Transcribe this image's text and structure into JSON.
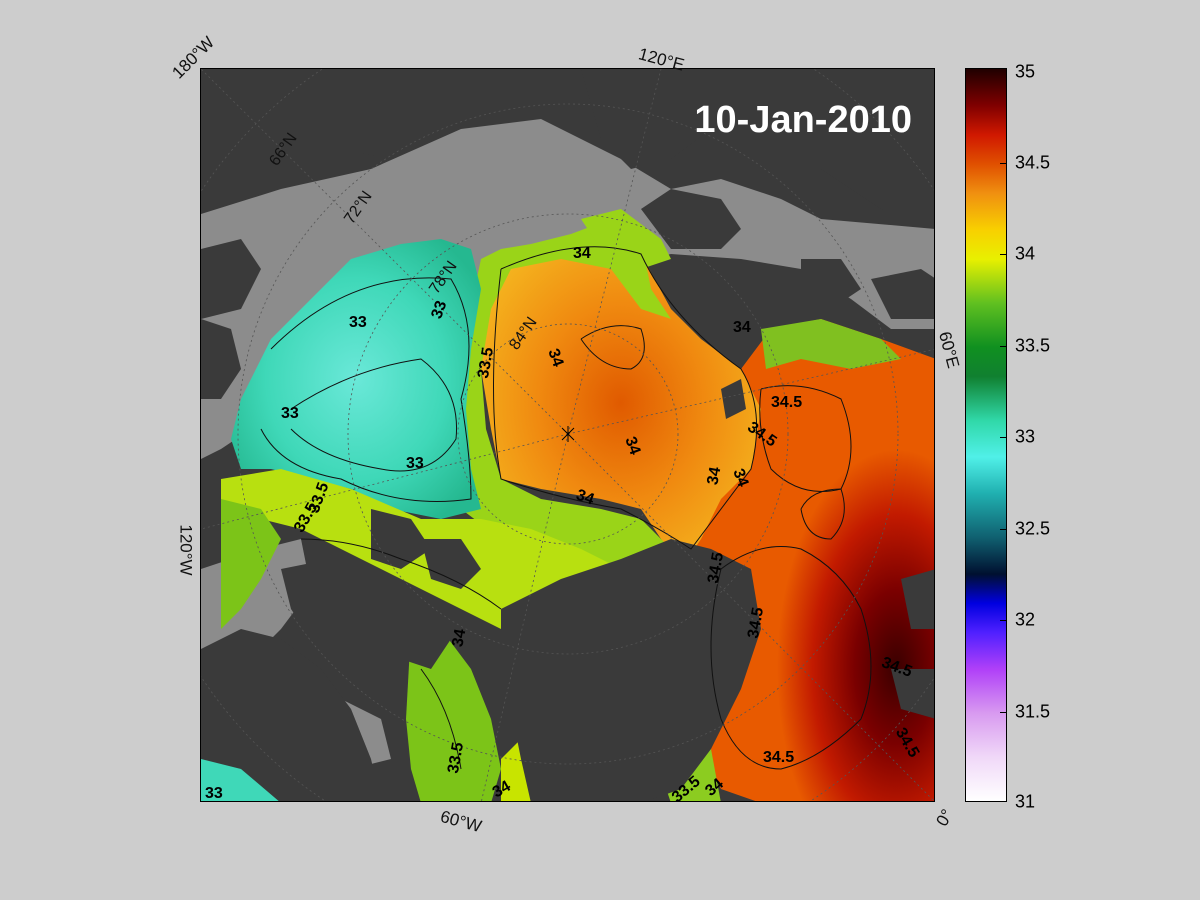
{
  "map": {
    "date": "10-Jan-2010",
    "longitude_labels": [
      "180°W",
      "120°E",
      "60°E",
      "0°",
      "60°W",
      "120°W"
    ],
    "latitude_labels": [
      "66°N",
      "72°N",
      "78°N",
      "84°N"
    ],
    "contour_labels": [
      "34",
      "34",
      "33",
      "33",
      "33",
      "33",
      "33.5",
      "34",
      "34",
      "34.5",
      "34.5",
      "34",
      "34",
      "34",
      "33.5",
      "34.5",
      "34.5",
      "34.5",
      "33.5",
      "34",
      "33.5",
      "34.5",
      "33",
      "33.5",
      "34",
      "34",
      "34.5"
    ]
  },
  "colorbar": {
    "ticks": [
      "35",
      "34.5",
      "34",
      "33.5",
      "33",
      "32.5",
      "32",
      "31.5",
      "31"
    ],
    "min": 31,
    "max": 35
  },
  "colors": {
    "land": "#3a3a3a",
    "ice_shelf": "#8c8c8c",
    "background": "#cdcdcd"
  }
}
